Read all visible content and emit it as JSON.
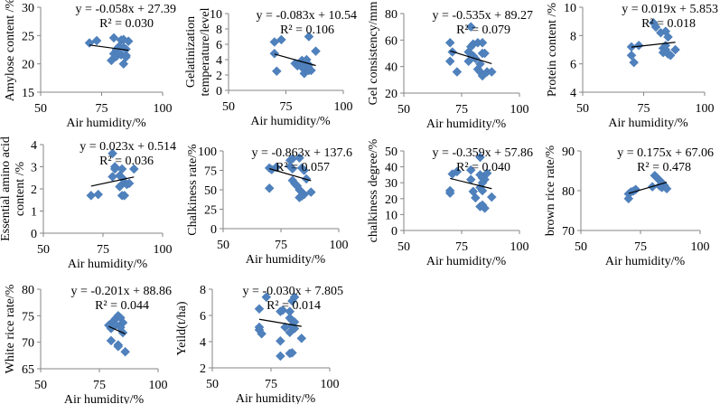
{
  "figure": {
    "marker_color": "#4F81BD",
    "trendline_color": "#000000",
    "axis_color": "#868686"
  },
  "chart_data": [
    {
      "type": "scatter",
      "id": "amylose",
      "xlabel": "Air humidity/%",
      "ylabel": [
        "Amylose content /%"
      ],
      "xlim": [
        50,
        100
      ],
      "xticks": [
        50,
        75,
        100
      ],
      "ylim": [
        15,
        30
      ],
      "yticks": [
        15,
        20,
        25,
        30
      ],
      "equation": "y = -0.058x + 27.39",
      "r2": "R² = 0.030",
      "trend": {
        "slope": -0.058,
        "intercept": 27.39,
        "x_range": [
          70,
          86
        ]
      },
      "points": [
        [
          70,
          23.7
        ],
        [
          73,
          24.1
        ],
        [
          80,
          24.6
        ],
        [
          83,
          24.2
        ],
        [
          84,
          24.3
        ],
        [
          86,
          24.0
        ],
        [
          81,
          22.5
        ],
        [
          82,
          23.0
        ],
        [
          84,
          22.9
        ],
        [
          85,
          22.6
        ],
        [
          80,
          21.8
        ],
        [
          81,
          21.3
        ],
        [
          83,
          21.6
        ],
        [
          85,
          21.5
        ],
        [
          79,
          20.6
        ],
        [
          82,
          22.0
        ],
        [
          84,
          20.0
        ],
        [
          85,
          21.2
        ]
      ]
    },
    {
      "type": "scatter",
      "id": "gelatinization",
      "xlabel": "Air humidity/%",
      "ylabel": [
        "Gelatinization",
        "temperature/level"
      ],
      "xlim": [
        50,
        100
      ],
      "xticks": [
        50,
        75,
        100
      ],
      "ylim": [
        0,
        10
      ],
      "yticks": [
        0,
        2,
        4,
        6,
        8,
        10
      ],
      "equation": "y = -0.083x + 10.54",
      "r2": "R² = 0.106",
      "trend": {
        "slope": -0.083,
        "intercept": 10.54,
        "x_range": [
          70,
          88
        ]
      },
      "points": [
        [
          70,
          6.3
        ],
        [
          73,
          6.6
        ],
        [
          70,
          4.8
        ],
        [
          71,
          2.5
        ],
        [
          85,
          7.0
        ],
        [
          88,
          5.1
        ],
        [
          79,
          3.5
        ],
        [
          80,
          3.2
        ],
        [
          81,
          3.4
        ],
        [
          82,
          3.9
        ],
        [
          83,
          3.6
        ],
        [
          84,
          4.0
        ],
        [
          83,
          2.2
        ],
        [
          84,
          2.8
        ],
        [
          85,
          2.6
        ],
        [
          86,
          2.6
        ],
        [
          82,
          3.0
        ],
        [
          85,
          3.3
        ]
      ]
    },
    {
      "type": "scatter",
      "id": "gel-consistency",
      "xlabel": "Air humidity/%",
      "ylabel": [
        "Gel consistency/mm"
      ],
      "xlim": [
        50,
        100
      ],
      "xticks": [
        50,
        75,
        100
      ],
      "ylim": [
        20,
        80
      ],
      "yticks": [
        20,
        40,
        60,
        80
      ],
      "equation": "y = -0.535x + 89.27",
      "r2": "R² = 0.079",
      "trend": {
        "slope": -0.535,
        "intercept": 89.27,
        "x_range": [
          70,
          88
        ]
      },
      "points": [
        [
          70,
          58
        ],
        [
          71,
          51
        ],
        [
          70,
          44
        ],
        [
          73,
          36
        ],
        [
          79,
          70
        ],
        [
          78,
          51
        ],
        [
          79,
          55
        ],
        [
          80,
          57
        ],
        [
          82,
          58
        ],
        [
          84,
          58
        ],
        [
          78,
          44
        ],
        [
          80,
          48
        ],
        [
          81,
          46
        ],
        [
          84,
          50
        ],
        [
          85,
          50
        ],
        [
          82,
          38
        ],
        [
          83,
          36
        ],
        [
          84,
          33
        ],
        [
          86,
          36
        ],
        [
          88,
          36
        ],
        [
          83,
          42
        ]
      ]
    },
    {
      "type": "scatter",
      "id": "protein",
      "xlabel": "Air humidity/%",
      "ylabel": [
        "Protein content /%"
      ],
      "xlim": [
        50,
        100
      ],
      "xticks": [
        50,
        75,
        100
      ],
      "ylim": [
        4,
        10
      ],
      "yticks": [
        4,
        6,
        8,
        10
      ],
      "equation": "y = 0.019x + 5.853",
      "r2": "R² = 0.018",
      "trend": {
        "slope": 0.019,
        "intercept": 5.853,
        "x_range": [
          70,
          88
        ]
      },
      "points": [
        [
          70,
          7.2
        ],
        [
          73,
          7.3
        ],
        [
          70,
          6.6
        ],
        [
          71,
          6.1
        ],
        [
          79,
          8.9
        ],
        [
          80,
          8.6
        ],
        [
          82,
          8.2
        ],
        [
          84,
          8.3
        ],
        [
          85,
          7.9
        ],
        [
          83,
          7.1
        ],
        [
          84,
          7.0
        ],
        [
          83,
          6.8
        ],
        [
          85,
          6.7
        ],
        [
          86,
          6.6
        ],
        [
          88,
          7.0
        ],
        [
          84,
          7.3
        ]
      ]
    },
    {
      "type": "scatter",
      "id": "essential-amino-acid",
      "xlabel": "Air humidity/%",
      "ylabel": [
        "Essential amino acid",
        "content /%"
      ],
      "xlim": [
        50,
        100
      ],
      "xticks": [
        50,
        75,
        100
      ],
      "ylim": [
        0,
        4
      ],
      "yticks": [
        0,
        1,
        2,
        3,
        4
      ],
      "equation": "y = 0.023x + 0.514",
      "r2": "R² = 0.036",
      "trend": {
        "slope": 0.023,
        "intercept": 0.514,
        "x_range": [
          70,
          88
        ]
      },
      "points": [
        [
          70,
          1.7
        ],
        [
          73,
          1.75
        ],
        [
          79,
          3.6
        ],
        [
          80,
          3.0
        ],
        [
          80,
          2.9
        ],
        [
          79,
          2.55
        ],
        [
          83,
          2.9
        ],
        [
          88,
          2.9
        ],
        [
          82,
          2.6
        ],
        [
          83,
          2.5
        ],
        [
          84,
          2.3
        ],
        [
          85,
          2.2
        ],
        [
          86,
          2.25
        ],
        [
          82,
          2.1
        ],
        [
          83,
          1.7
        ],
        [
          84,
          1.7
        ]
      ]
    },
    {
      "type": "scatter",
      "id": "chalkiness-rate",
      "xlabel": "Air humidity/%",
      "ylabel": [
        "Chalkiness rate/%"
      ],
      "xlim": [
        50,
        100
      ],
      "xticks": [
        50,
        75,
        100
      ],
      "ylim": [
        0,
        100
      ],
      "yticks": [
        0,
        25,
        50,
        75,
        100
      ],
      "equation": "y = -0.863x + 137.6",
      "r2": "R² = 0.057",
      "trend": {
        "slope": -0.863,
        "intercept": 137.6,
        "x_range": [
          70,
          88
        ]
      },
      "points": [
        [
          70,
          78
        ],
        [
          71,
          76
        ],
        [
          73,
          79
        ],
        [
          70,
          52
        ],
        [
          79,
          88
        ],
        [
          80,
          90
        ],
        [
          83,
          91
        ],
        [
          79,
          80
        ],
        [
          80,
          77
        ],
        [
          84,
          78
        ],
        [
          85,
          75
        ],
        [
          86,
          64
        ],
        [
          80,
          62
        ],
        [
          81,
          58
        ],
        [
          82,
          55
        ],
        [
          83,
          50
        ],
        [
          84,
          47
        ],
        [
          85,
          44
        ],
        [
          83,
          40
        ],
        [
          88,
          47
        ],
        [
          84,
          42
        ]
      ]
    },
    {
      "type": "scatter",
      "id": "chalkiness-degree",
      "xlabel": "Air humidity/%",
      "ylabel": [
        "chalkiness degree/%"
      ],
      "xlim": [
        50,
        100
      ],
      "xticks": [
        50,
        75,
        100
      ],
      "ylim": [
        0,
        50
      ],
      "yticks": [
        0,
        10,
        20,
        30,
        40,
        50
      ],
      "equation": "y = -0.359x + 57.86",
      "r2": "R² = 0.040",
      "trend": {
        "slope": -0.359,
        "intercept": 57.86,
        "x_range": [
          70,
          88
        ]
      },
      "points": [
        [
          70,
          25
        ],
        [
          70,
          23.5
        ],
        [
          71,
          35.5
        ],
        [
          73,
          37
        ],
        [
          79,
          38
        ],
        [
          79,
          32
        ],
        [
          80,
          24.5
        ],
        [
          81,
          20.5
        ],
        [
          83,
          46
        ],
        [
          83,
          35
        ],
        [
          84,
          33
        ],
        [
          85,
          32
        ],
        [
          86,
          36
        ],
        [
          84,
          30
        ],
        [
          83,
          27
        ],
        [
          84,
          25
        ],
        [
          88,
          21
        ],
        [
          83,
          15
        ],
        [
          85,
          14
        ],
        [
          84,
          16
        ]
      ]
    },
    {
      "type": "scatter",
      "id": "brown-rice-rate",
      "xlabel": "Air humidity/%",
      "ylabel": [
        "brown rice rate/%"
      ],
      "xlim": [
        50,
        100
      ],
      "xticks": [
        50,
        75,
        100
      ],
      "ylim": [
        70,
        90
      ],
      "yticks": [
        70,
        80,
        90
      ],
      "equation": "y = 0.175x + 67.06",
      "r2": "R² = 0.478",
      "trend": {
        "slope": 0.175,
        "intercept": 67.06,
        "x_range": [
          70,
          86
        ]
      },
      "points": [
        [
          70,
          78
        ],
        [
          70,
          79.2
        ],
        [
          71,
          79.7
        ],
        [
          73,
          80.3
        ],
        [
          72,
          79.9
        ],
        [
          80,
          81
        ],
        [
          81,
          83.8
        ],
        [
          82,
          83.2
        ],
        [
          83,
          82.6
        ],
        [
          84,
          82
        ],
        [
          85,
          81.3
        ],
        [
          84,
          80.8
        ],
        [
          86,
          80.5
        ],
        [
          83,
          81.2
        ]
      ]
    },
    {
      "type": "scatter",
      "id": "white-rice-rate",
      "xlabel": "Air humidity/%",
      "ylabel": [
        "White rice rate/%"
      ],
      "xlim": [
        50,
        100
      ],
      "xticks": [
        50,
        75,
        100
      ],
      "ylim": [
        65,
        80
      ],
      "yticks": [
        65,
        70,
        75,
        80
      ],
      "equation": "y = -0.201x + 88.86",
      "r2": "R² = 0.044",
      "trend": {
        "slope": -0.201,
        "intercept": 88.86,
        "x_range": [
          79,
          86
        ]
      },
      "points": [
        [
          79,
          73.2
        ],
        [
          80,
          72.6
        ],
        [
          81,
          74.0
        ],
        [
          82,
          74.5
        ],
        [
          83,
          75.0
        ],
        [
          84,
          74.6
        ],
        [
          85,
          73.7
        ],
        [
          82,
          73.3
        ],
        [
          84,
          72.8
        ],
        [
          85,
          71.8
        ],
        [
          80,
          70.3
        ],
        [
          83,
          69.5
        ],
        [
          83,
          69.2
        ],
        [
          86,
          68.2
        ]
      ]
    },
    {
      "type": "scatter",
      "id": "yield",
      "xlabel": "Air humidity/%",
      "ylabel": [
        "Yeild(t/ha)"
      ],
      "xlim": [
        50,
        100
      ],
      "xticks": [
        50,
        75,
        100
      ],
      "ylim": [
        2,
        8
      ],
      "yticks": [
        2,
        4,
        6,
        8
      ],
      "equation": "y = -0.030x + 7.805",
      "r2": "R² = 0.014",
      "trend": {
        "slope": -0.03,
        "intercept": 7.805,
        "x_range": [
          70,
          88
        ]
      },
      "points": [
        [
          70,
          6.5
        ],
        [
          73,
          7.4
        ],
        [
          70,
          5.1
        ],
        [
          70,
          4.9
        ],
        [
          71,
          4.6
        ],
        [
          79,
          6.3
        ],
        [
          80,
          6.4
        ],
        [
          83,
          6.3
        ],
        [
          84,
          7.1
        ],
        [
          85,
          7.4
        ],
        [
          83,
          5.8
        ],
        [
          84,
          5.6
        ],
        [
          85,
          5.5
        ],
        [
          81,
          5.1
        ],
        [
          84,
          5.2
        ],
        [
          85,
          5.0
        ],
        [
          83,
          4.7
        ],
        [
          79,
          4.05
        ],
        [
          88,
          4.25
        ],
        [
          79,
          2.9
        ],
        [
          83,
          3.1
        ],
        [
          84,
          3.15
        ]
      ]
    }
  ]
}
